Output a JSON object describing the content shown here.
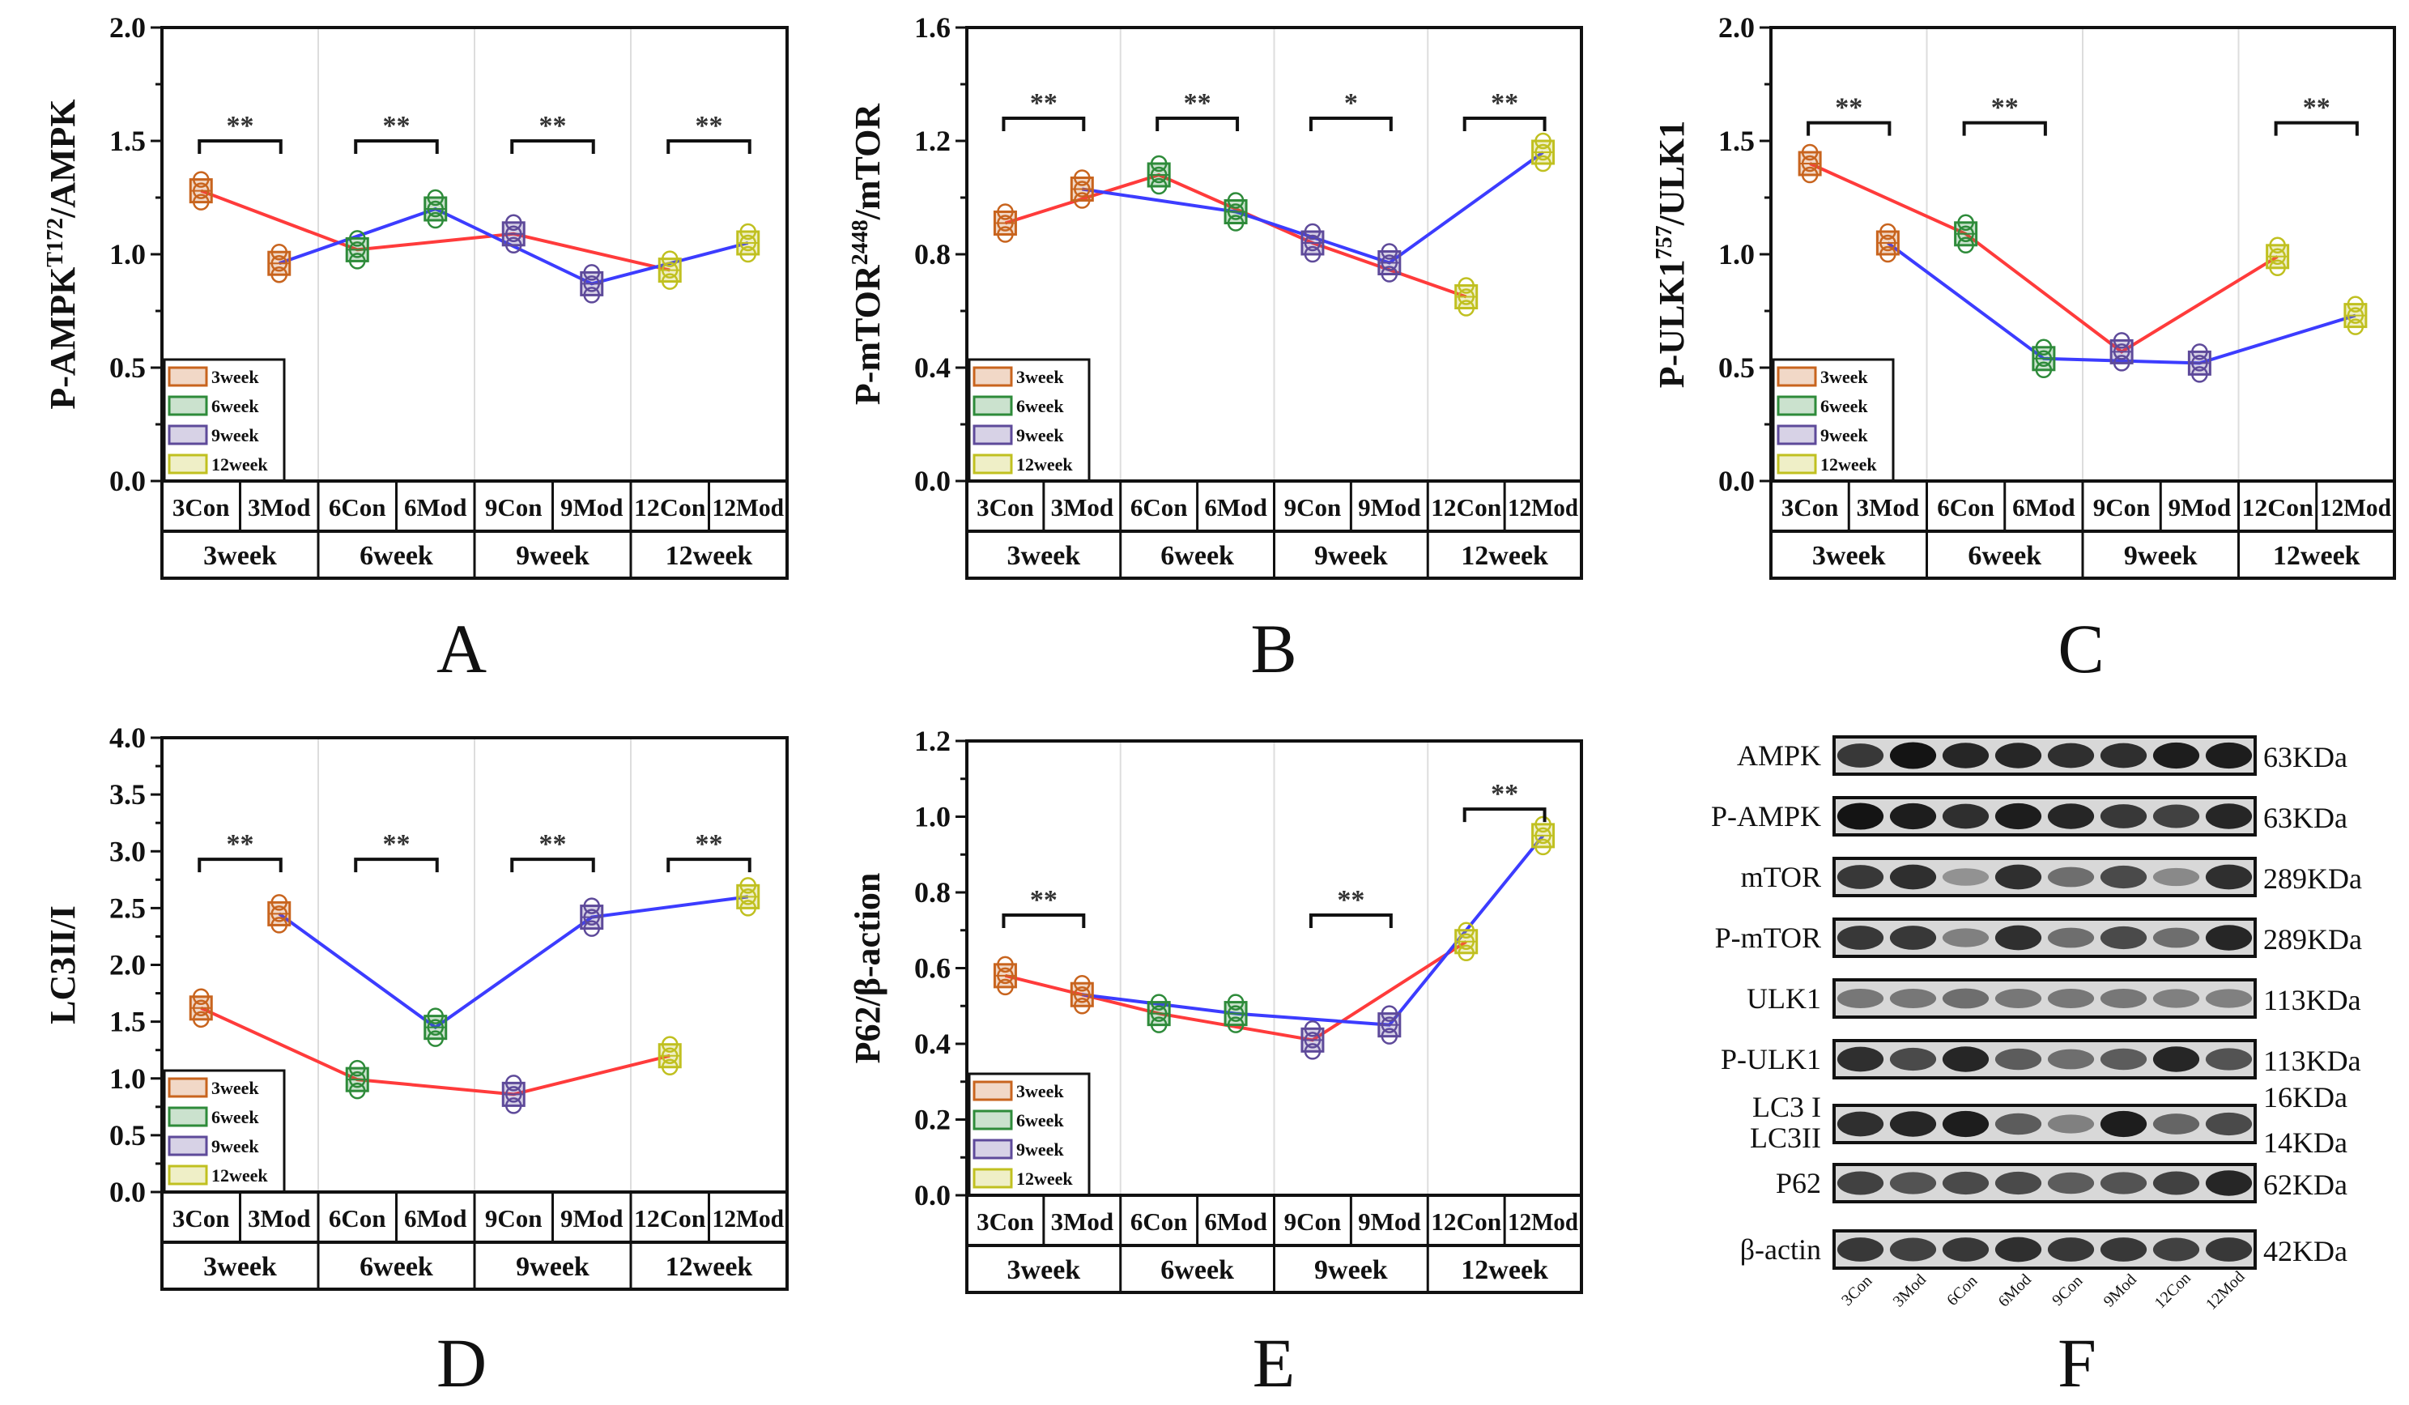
{
  "legend": [
    "3week",
    "6week",
    "9week",
    "12week"
  ],
  "colors": {
    "3week": "#c8641e",
    "6week": "#2e8b3a",
    "9week": "#5e4a9a",
    "12week": "#c0c020",
    "con_line": "#ff3b3b",
    "mod_line": "#3c3cff"
  },
  "chart_data": [
    {
      "type": "box-line",
      "letter": "A",
      "ylabel": {
        "pre": "P-AMPK",
        "sup": "T172",
        "post": "/AMPK"
      },
      "ylim": [
        0,
        2.0
      ],
      "yticks": [
        "0.0",
        "0.5",
        "1.0",
        "1.5",
        "2.0"
      ],
      "categories": [
        "3Con",
        "3Mod",
        "6Con",
        "6Mod",
        "9Con",
        "9Mod",
        "12Con",
        "12Mod"
      ],
      "groups": [
        "3week",
        "6week",
        "9week",
        "12week"
      ],
      "con": [
        1.28,
        1.02,
        1.09,
        0.93
      ],
      "mod": [
        0.96,
        1.2,
        0.87,
        1.05
      ],
      "significance": [
        {
          "group": "3week",
          "mark": "**",
          "level": 1.5
        },
        {
          "group": "6week",
          "mark": "**",
          "level": 1.5
        },
        {
          "group": "9week",
          "mark": "**",
          "level": 1.5
        },
        {
          "group": "12week",
          "mark": "**",
          "level": 1.5
        }
      ]
    },
    {
      "type": "box-line",
      "letter": "B",
      "ylabel": {
        "pre": "P-mTOR",
        "sup": "2448",
        "post": "/mTOR"
      },
      "ylim": [
        0,
        1.6
      ],
      "yticks": [
        "0.0",
        "0.4",
        "0.8",
        "1.2",
        "1.6"
      ],
      "categories": [
        "3Con",
        "3Mod",
        "6Con",
        "6Mod",
        "9Con",
        "9Mod",
        "12Con",
        "12Mod"
      ],
      "groups": [
        "3week",
        "6week",
        "9week",
        "12week"
      ],
      "con": [
        0.91,
        1.08,
        0.84,
        0.65
      ],
      "mod": [
        1.03,
        0.95,
        0.77,
        1.16
      ],
      "significance": [
        {
          "group": "3week",
          "mark": "**",
          "level": 1.28
        },
        {
          "group": "6week",
          "mark": "**",
          "level": 1.28
        },
        {
          "group": "9week",
          "mark": "*",
          "level": 1.28
        },
        {
          "group": "12week",
          "mark": "**",
          "level": 1.28
        }
      ]
    },
    {
      "type": "box-line",
      "letter": "C",
      "ylabel": {
        "pre": "P-ULK1",
        "sup": "757",
        "post": "/ULK1"
      },
      "ylim": [
        0,
        2.0
      ],
      "yticks": [
        "0.0",
        "0.5",
        "1.0",
        "1.5",
        "2.0"
      ],
      "categories": [
        "3Con",
        "3Mod",
        "6Con",
        "6Mod",
        "9Con",
        "9Mod",
        "12Con",
        "12Mod"
      ],
      "groups": [
        "3week",
        "6week",
        "9week",
        "12week"
      ],
      "con": [
        1.4,
        1.09,
        0.57,
        0.99
      ],
      "mod": [
        1.05,
        0.54,
        0.52,
        0.73
      ],
      "significance": [
        {
          "group": "3week",
          "mark": "**",
          "level": 1.58
        },
        {
          "group": "6week",
          "mark": "**",
          "level": 1.58
        },
        {
          "group": "12week",
          "mark": "**",
          "level": 1.58
        }
      ]
    },
    {
      "type": "box-line",
      "letter": "D",
      "ylabel": {
        "pre": "LC3II/I",
        "sup": "",
        "post": ""
      },
      "ylim": [
        0,
        4.0
      ],
      "yticks": [
        "0.0",
        "0.5",
        "1.0",
        "1.5",
        "2.0",
        "2.5",
        "3.0",
        "3.5",
        "4.0"
      ],
      "categories": [
        "3Con",
        "3Mod",
        "6Con",
        "6Mod",
        "9Con",
        "9Mod",
        "12Con",
        "12Mod"
      ],
      "groups": [
        "3week",
        "6week",
        "9week",
        "12week"
      ],
      "con": [
        1.62,
        0.99,
        0.86,
        1.2
      ],
      "mod": [
        2.45,
        1.45,
        2.42,
        2.6
      ],
      "significance": [
        {
          "group": "3week",
          "mark": "**",
          "level": 2.93
        },
        {
          "group": "6week",
          "mark": "**",
          "level": 2.93
        },
        {
          "group": "9week",
          "mark": "**",
          "level": 2.93
        },
        {
          "group": "12week",
          "mark": "**",
          "level": 2.93
        }
      ]
    },
    {
      "type": "box-line",
      "letter": "E",
      "ylabel": {
        "pre": "P62/β-action",
        "sup": "",
        "post": ""
      },
      "ylim": [
        0,
        1.2
      ],
      "yticks": [
        "0.0",
        "0.2",
        "0.4",
        "0.6",
        "0.8",
        "1.0",
        "1.2"
      ],
      "categories": [
        "3Con",
        "3Mod",
        "6Con",
        "6Mod",
        "9Con",
        "9Mod",
        "12Con",
        "12Mod"
      ],
      "groups": [
        "3week",
        "6week",
        "9week",
        "12week"
      ],
      "con": [
        0.58,
        0.48,
        0.41,
        0.67
      ],
      "mod": [
        0.53,
        0.48,
        0.45,
        0.95
      ],
      "significance": [
        {
          "group": "3week",
          "mark": "**",
          "level": 0.74
        },
        {
          "group": "9week",
          "mark": "**",
          "level": 0.74
        },
        {
          "group": "12week",
          "mark": "**",
          "level": 1.02
        }
      ]
    }
  ],
  "blot": {
    "letter": "F",
    "lanes": [
      "3Con",
      "3Mod",
      "6Con",
      "6Mod",
      "9Con",
      "9Mod",
      "12Con",
      "12Mod"
    ],
    "rows": [
      {
        "label": "AMPK",
        "size": "63KDa",
        "intensity": [
          0.8,
          1,
          0.9,
          0.9,
          0.85,
          0.85,
          0.95,
          0.95
        ]
      },
      {
        "label": "P-AMPK",
        "size": "63KDa",
        "intensity": [
          1,
          0.95,
          0.85,
          0.95,
          0.9,
          0.8,
          0.75,
          0.9
        ]
      },
      {
        "label": "mTOR",
        "size": "289KDa",
        "intensity": [
          0.8,
          0.85,
          0.3,
          0.85,
          0.5,
          0.7,
          0.35,
          0.85
        ]
      },
      {
        "label": "P-mTOR",
        "size": "289KDa",
        "intensity": [
          0.8,
          0.8,
          0.4,
          0.85,
          0.5,
          0.7,
          0.5,
          0.9
        ]
      },
      {
        "label": "ULK1",
        "size": "113KDa",
        "intensity": [
          0.45,
          0.45,
          0.5,
          0.45,
          0.45,
          0.45,
          0.4,
          0.4
        ]
      },
      {
        "label": "P-ULK1",
        "size": "113KDa",
        "intensity": [
          0.85,
          0.7,
          0.9,
          0.6,
          0.5,
          0.6,
          0.9,
          0.65
        ]
      },
      {
        "label": "LC3 I",
        "label2": "LC3II",
        "size": "16KDa",
        "size2": "14KDa",
        "intensity": [
          0.85,
          0.9,
          0.95,
          0.6,
          0.4,
          0.95,
          0.55,
          0.7
        ]
      },
      {
        "label": "P62",
        "size": "62KDa",
        "intensity": [
          0.75,
          0.65,
          0.7,
          0.7,
          0.6,
          0.65,
          0.75,
          0.9
        ]
      },
      {
        "label": "β-actin",
        "size": "42KDa",
        "intensity": [
          0.8,
          0.75,
          0.8,
          0.85,
          0.8,
          0.8,
          0.75,
          0.8
        ]
      }
    ]
  }
}
